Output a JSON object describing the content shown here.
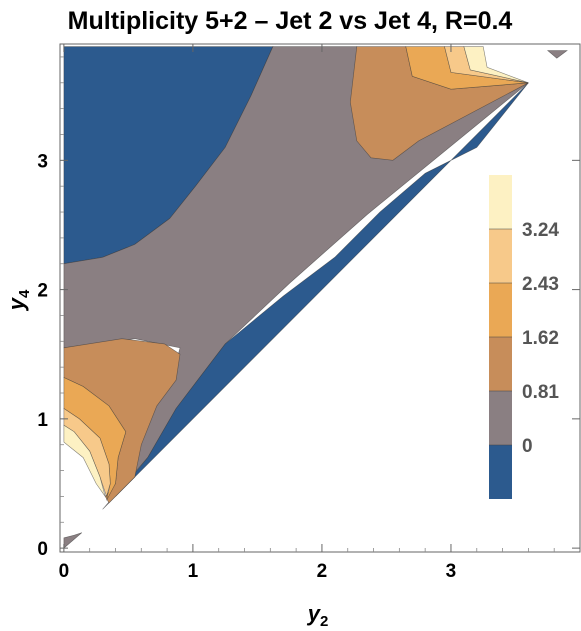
{
  "chart_data": {
    "type": "heatmap",
    "subtype": "filled-contour",
    "title": "Multiplicity   5+2 – Jet 2 vs Jet 4, R=0.4",
    "xlabel": "y",
    "xlabel_sub": "2",
    "ylabel": "y",
    "ylabel_sub": "4",
    "xlim": [
      -0.03,
      4.0
    ],
    "ylim": [
      -0.03,
      3.9
    ],
    "x_ticks": [
      0,
      1,
      2,
      3
    ],
    "y_ticks": [
      0,
      1,
      2,
      3
    ],
    "x_tick_labels": [
      "0",
      "1",
      "2",
      "3"
    ],
    "y_tick_labels": [
      "0",
      "1",
      "2",
      "3"
    ],
    "legend": {
      "position": "right",
      "bands": [
        {
          "from": null,
          "to": 0,
          "color": "#2c5a8e"
        },
        {
          "from": 0,
          "to": 0.81,
          "color": "#8a7f82"
        },
        {
          "from": 0.81,
          "to": 1.62,
          "color": "#c78d5a"
        },
        {
          "from": 1.62,
          "to": 2.43,
          "color": "#eaa855"
        },
        {
          "from": 2.43,
          "to": 3.24,
          "color": "#f7c98a"
        },
        {
          "from": 3.24,
          "to": null,
          "color": "#fdf1c3"
        }
      ],
      "labels": [
        "0",
        "0.81",
        "1.62",
        "2.43",
        "3.24"
      ]
    },
    "regions": [
      {
        "level": "<0",
        "color": "#2c5a8e",
        "polygon": [
          [
            0.0,
            3.88
          ],
          [
            1.62,
            3.88
          ],
          [
            1.45,
            3.5
          ],
          [
            1.25,
            3.1
          ],
          [
            1.02,
            2.8
          ],
          [
            0.82,
            2.55
          ],
          [
            0.55,
            2.35
          ],
          [
            0.3,
            2.25
          ],
          [
            0.0,
            2.2
          ]
        ]
      },
      {
        "level": "0-0.81",
        "color": "#8a7f82",
        "polygon": [
          [
            1.62,
            3.88
          ],
          [
            2.27,
            3.88
          ],
          [
            2.32,
            3.4
          ],
          [
            2.6,
            3.2
          ],
          [
            3.6,
            3.6
          ],
          [
            2.35,
            2.58
          ],
          [
            1.75,
            2.05
          ],
          [
            1.25,
            1.58
          ],
          [
            0.87,
            1.08
          ],
          [
            0.65,
            0.7
          ],
          [
            0.3,
            0.3
          ],
          [
            0.55,
            0.55
          ],
          [
            0.55,
            1.0
          ],
          [
            0.85,
            1.35
          ],
          [
            0.9,
            1.55
          ],
          [
            0.55,
            1.62
          ],
          [
            0.0,
            1.55
          ],
          [
            0.0,
            2.2
          ],
          [
            0.3,
            2.25
          ],
          [
            0.55,
            2.35
          ],
          [
            0.82,
            2.55
          ],
          [
            1.02,
            2.8
          ],
          [
            1.25,
            3.1
          ],
          [
            1.45,
            3.5
          ]
        ]
      },
      {
        "level": "0-0.81",
        "color": "#8a7f82",
        "polygon": [
          [
            0.0,
            0.0
          ],
          [
            0.14,
            0.12
          ],
          [
            0.08,
            0.1
          ],
          [
            0.0,
            0.08
          ]
        ]
      },
      {
        "level": "0-0.81",
        "color": "#8a7f82",
        "polygon": [
          [
            3.75,
            3.85
          ],
          [
            3.9,
            3.85
          ],
          [
            3.82,
            3.79
          ]
        ]
      },
      {
        "level": "<0",
        "color": "#2c5a8e",
        "polygon": [
          [
            0.4,
            0.4
          ],
          [
            3.6,
            3.6
          ],
          [
            3.2,
            3.1
          ],
          [
            2.8,
            2.9
          ],
          [
            2.45,
            2.6
          ],
          [
            2.1,
            2.25
          ],
          [
            1.7,
            1.95
          ],
          [
            1.25,
            1.58
          ],
          [
            0.87,
            1.08
          ],
          [
            0.65,
            0.7
          ]
        ]
      },
      {
        "level": "0.81-1.62",
        "color": "#c78d5a",
        "polygon": [
          [
            2.27,
            3.88
          ],
          [
            2.65,
            3.88
          ],
          [
            2.7,
            3.65
          ],
          [
            3.0,
            3.55
          ],
          [
            3.6,
            3.6
          ],
          [
            2.75,
            3.15
          ],
          [
            2.55,
            3.0
          ],
          [
            2.38,
            3.02
          ],
          [
            2.27,
            3.15
          ],
          [
            2.22,
            3.45
          ]
        ]
      },
      {
        "level": "0.81-1.62",
        "color": "#c78d5a",
        "polygon": [
          [
            0.0,
            1.55
          ],
          [
            0.45,
            1.62
          ],
          [
            0.78,
            1.58
          ],
          [
            0.9,
            1.5
          ],
          [
            0.87,
            1.3
          ],
          [
            0.72,
            1.1
          ],
          [
            0.6,
            0.8
          ],
          [
            0.55,
            0.55
          ],
          [
            0.35,
            0.35
          ],
          [
            0.32,
            0.4
          ],
          [
            0.4,
            0.5
          ],
          [
            0.42,
            0.7
          ],
          [
            0.48,
            0.9
          ],
          [
            0.35,
            1.1
          ],
          [
            0.15,
            1.25
          ],
          [
            0.0,
            1.32
          ]
        ]
      },
      {
        "level": "1.62-2.43",
        "color": "#eaa855",
        "polygon": [
          [
            2.65,
            3.88
          ],
          [
            2.95,
            3.88
          ],
          [
            3.0,
            3.68
          ],
          [
            3.6,
            3.6
          ],
          [
            3.0,
            3.55
          ],
          [
            2.7,
            3.65
          ]
        ]
      },
      {
        "level": "1.62-2.43",
        "color": "#eaa855",
        "polygon": [
          [
            0.0,
            1.32
          ],
          [
            0.15,
            1.25
          ],
          [
            0.35,
            1.1
          ],
          [
            0.48,
            0.9
          ],
          [
            0.42,
            0.7
          ],
          [
            0.4,
            0.5
          ],
          [
            0.33,
            0.37
          ],
          [
            0.36,
            0.5
          ],
          [
            0.35,
            0.65
          ],
          [
            0.28,
            0.85
          ],
          [
            0.12,
            1.0
          ],
          [
            0.0,
            1.08
          ]
        ]
      },
      {
        "level": "2.43-3.24",
        "color": "#f7c98a",
        "polygon": [
          [
            2.95,
            3.88
          ],
          [
            3.1,
            3.88
          ],
          [
            3.15,
            3.7
          ],
          [
            3.6,
            3.6
          ],
          [
            3.0,
            3.68
          ]
        ]
      },
      {
        "level": "2.43-3.24",
        "color": "#f7c98a",
        "polygon": [
          [
            0.0,
            1.08
          ],
          [
            0.12,
            1.0
          ],
          [
            0.28,
            0.85
          ],
          [
            0.35,
            0.65
          ],
          [
            0.36,
            0.5
          ],
          [
            0.33,
            0.4
          ],
          [
            0.28,
            0.55
          ],
          [
            0.2,
            0.75
          ],
          [
            0.08,
            0.9
          ],
          [
            0.0,
            0.95
          ]
        ]
      },
      {
        "level": ">3.24",
        "color": "#fdf1c3",
        "polygon": [
          [
            3.1,
            3.88
          ],
          [
            3.25,
            3.88
          ],
          [
            3.28,
            3.72
          ],
          [
            3.6,
            3.6
          ],
          [
            3.15,
            3.7
          ]
        ]
      },
      {
        "level": ">3.24",
        "color": "#fdf1c3",
        "polygon": [
          [
            0.0,
            0.95
          ],
          [
            0.08,
            0.9
          ],
          [
            0.2,
            0.75
          ],
          [
            0.28,
            0.55
          ],
          [
            0.32,
            0.4
          ],
          [
            0.25,
            0.5
          ],
          [
            0.15,
            0.7
          ],
          [
            0.0,
            0.82
          ]
        ]
      }
    ],
    "grid": false
  }
}
